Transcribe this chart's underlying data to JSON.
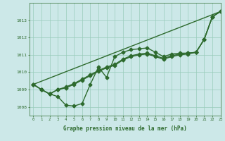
{
  "x": [
    0,
    1,
    2,
    3,
    4,
    5,
    6,
    7,
    8,
    9,
    10,
    11,
    12,
    13,
    14,
    15,
    16,
    17,
    18,
    19,
    20,
    21,
    22,
    23
  ],
  "series1": [
    1009.3,
    1009.0,
    1008.75,
    1008.6,
    1008.1,
    1008.05,
    1008.2,
    1009.3,
    1010.3,
    1009.7,
    1010.9,
    1011.15,
    1011.3,
    1011.35,
    1011.4,
    1011.15,
    1010.9,
    1011.05,
    1011.1,
    1011.1,
    1011.15,
    1011.9,
    1013.2,
    1013.5
  ],
  "series2": [
    1009.3,
    1009.0,
    1008.75,
    1009.0,
    1009.15,
    1009.35,
    1009.6,
    1009.85,
    1010.1,
    1010.3,
    1010.45,
    1010.75,
    1010.95,
    1011.05,
    1011.1,
    1010.95,
    1010.8,
    1010.95,
    1011.05,
    1011.1,
    1011.15,
    1011.9,
    1013.2,
    1013.5
  ],
  "series3": [
    1009.3,
    1009.0,
    1008.75,
    1009.0,
    1009.1,
    1009.3,
    1009.55,
    1009.8,
    1010.05,
    1010.25,
    1010.4,
    1010.7,
    1010.9,
    1011.0,
    1011.05,
    1010.9,
    1010.75,
    1010.9,
    1011.0,
    1011.05,
    1011.15,
    1011.9,
    1013.2,
    1013.5
  ],
  "series4_x": [
    0,
    23
  ],
  "series4_y": [
    1009.3,
    1013.5
  ],
  "xlabel": "Graphe pression niveau de la mer (hPa)",
  "ylim": [
    1007.5,
    1014.0
  ],
  "xlim": [
    -0.5,
    23
  ],
  "yticks": [
    1008,
    1009,
    1010,
    1011,
    1012,
    1013
  ],
  "xticks": [
    0,
    1,
    2,
    3,
    4,
    5,
    6,
    7,
    8,
    9,
    10,
    11,
    12,
    13,
    14,
    15,
    16,
    17,
    18,
    19,
    20,
    21,
    22,
    23
  ],
  "line_color": "#2d6a2d",
  "bg_color": "#cce8e8",
  "grid_color": "#99ccbb",
  "marker": "D",
  "marker_size": 2.5,
  "line_width": 1.0
}
